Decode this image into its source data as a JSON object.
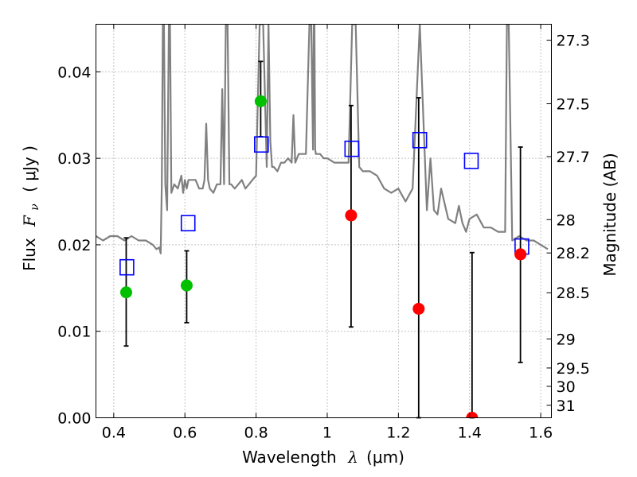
{
  "chart_data": {
    "type": "scatter",
    "xlabel": "Wavelength",
    "xlabel_symbol": "λ",
    "xlabel_unit": "(μm)",
    "ylabel": "Flux",
    "ylabel_symbol": "F",
    "ylabel_subscript": "ν",
    "ylabel_unit": "( μJy )",
    "ylabel_right": "Magnitude (AB)",
    "xlim": [
      0.35,
      1.63
    ],
    "ylim": [
      0.0,
      0.0455
    ],
    "grid": true,
    "x_ticks": [
      {
        "value": 0.4,
        "label": "0.4"
      },
      {
        "value": 0.6,
        "label": "0.6"
      },
      {
        "value": 0.8,
        "label": "0.8"
      },
      {
        "value": 1.0,
        "label": "1"
      },
      {
        "value": 1.2,
        "label": "1.2"
      },
      {
        "value": 1.4,
        "label": "1.4"
      },
      {
        "value": 1.6,
        "label": "1.6"
      }
    ],
    "y_ticks": [
      {
        "value": 0.0,
        "label": "0.00"
      },
      {
        "value": 0.01,
        "label": "0.01"
      },
      {
        "value": 0.02,
        "label": "0.02"
      },
      {
        "value": 0.03,
        "label": "0.03"
      },
      {
        "value": 0.04,
        "label": "0.04"
      }
    ],
    "right_ticks": [
      {
        "mag": 27.3,
        "label": "27.3"
      },
      {
        "mag": 27.5,
        "label": "27.5"
      },
      {
        "mag": 27.7,
        "label": "27.7"
      },
      {
        "mag": 28.0,
        "label": "28"
      },
      {
        "mag": 28.2,
        "label": "28.2"
      },
      {
        "mag": 28.5,
        "label": "28.5"
      },
      {
        "mag": 29.0,
        "label": "29"
      },
      {
        "mag": 29.5,
        "label": "29.5"
      },
      {
        "mag": 30.0,
        "label": "30"
      },
      {
        "mag": 31.0,
        "label": "31"
      }
    ],
    "colors": {
      "sed": "#808080",
      "green": "#00c000",
      "red": "#ff0000",
      "blue": "#0000ff",
      "errorbar": "#000000",
      "grid": "#888888"
    },
    "series": [
      {
        "name": "model SED",
        "kind": "line",
        "x": [
          0.35,
          0.37,
          0.39,
          0.41,
          0.43,
          0.45,
          0.47,
          0.49,
          0.51,
          0.52,
          0.528,
          0.532,
          0.535,
          0.538,
          0.541,
          0.545,
          0.55,
          0.555,
          0.558,
          0.562,
          0.57,
          0.58,
          0.59,
          0.595,
          0.6,
          0.605,
          0.61,
          0.62,
          0.63,
          0.64,
          0.65,
          0.655,
          0.66,
          0.665,
          0.67,
          0.68,
          0.69,
          0.7,
          0.705,
          0.71,
          0.715,
          0.72,
          0.725,
          0.73,
          0.74,
          0.75,
          0.76,
          0.77,
          0.78,
          0.79,
          0.8,
          0.81,
          0.82,
          0.83,
          0.835,
          0.84,
          0.845,
          0.85,
          0.86,
          0.87,
          0.88,
          0.89,
          0.9,
          0.905,
          0.91,
          0.915,
          0.92,
          0.93,
          0.94,
          0.95,
          0.955,
          0.96,
          0.962,
          0.964,
          0.966,
          0.968,
          0.972,
          0.98,
          0.99,
          1.0,
          1.02,
          1.04,
          1.06,
          1.07,
          1.08,
          1.09,
          1.1,
          1.12,
          1.14,
          1.16,
          1.18,
          1.2,
          1.22,
          1.24,
          1.26,
          1.28,
          1.29,
          1.3,
          1.31,
          1.32,
          1.34,
          1.36,
          1.37,
          1.38,
          1.39,
          1.4,
          1.42,
          1.44,
          1.46,
          1.48,
          1.5,
          1.505,
          1.51,
          1.52,
          1.54,
          1.56,
          1.58,
          1.6,
          1.62
        ],
        "y": [
          0.021,
          0.0205,
          0.021,
          0.021,
          0.0205,
          0.021,
          0.0205,
          0.0205,
          0.02,
          0.0195,
          0.0197,
          0.019,
          0.027,
          0.0455,
          0.0455,
          0.027,
          0.024,
          0.0455,
          0.0455,
          0.026,
          0.027,
          0.0265,
          0.028,
          0.026,
          0.0275,
          0.0265,
          0.0275,
          0.0275,
          0.0275,
          0.0265,
          0.0265,
          0.0275,
          0.034,
          0.0275,
          0.0265,
          0.026,
          0.027,
          0.027,
          0.038,
          0.027,
          0.0455,
          0.0455,
          0.027,
          0.027,
          0.0265,
          0.027,
          0.0275,
          0.0265,
          0.027,
          0.0275,
          0.028,
          0.0455,
          0.0455,
          0.029,
          0.0455,
          0.032,
          0.029,
          0.029,
          0.0285,
          0.0295,
          0.0295,
          0.03,
          0.0295,
          0.035,
          0.0295,
          0.03,
          0.0305,
          0.0305,
          0.0305,
          0.0455,
          0.0455,
          0.031,
          0.0455,
          0.0455,
          0.031,
          0.0305,
          0.0305,
          0.0305,
          0.03,
          0.03,
          0.0295,
          0.0295,
          0.0295,
          0.0455,
          0.0455,
          0.029,
          0.0285,
          0.0285,
          0.028,
          0.0265,
          0.026,
          0.0265,
          0.025,
          0.0265,
          0.0455,
          0.024,
          0.03,
          0.024,
          0.0235,
          0.0265,
          0.023,
          0.0225,
          0.0245,
          0.0225,
          0.0215,
          0.023,
          0.0235,
          0.022,
          0.022,
          0.0215,
          0.0215,
          0.0455,
          0.0455,
          0.0205,
          0.021,
          0.0205,
          0.0205,
          0.02,
          0.0195
        ]
      },
      {
        "name": "green detections",
        "kind": "points",
        "x": [
          0.435,
          0.605,
          0.813
        ],
        "y": [
          0.0145,
          0.0153,
          0.0366
        ],
        "err_low": [
          0.0083,
          0.011,
          0.0325
        ],
        "err_high": [
          0.0208,
          0.0193,
          0.0412
        ]
      },
      {
        "name": "red measurements",
        "kind": "points",
        "x": [
          1.067,
          1.257,
          1.407,
          1.543
        ],
        "y": [
          0.0234,
          0.0126,
          0.0,
          0.0189
        ],
        "err_low": [
          0.0105,
          0.0,
          0.0,
          0.0064
        ],
        "err_high": [
          0.0361,
          0.037,
          0.0191,
          0.0313
        ]
      },
      {
        "name": "model photometry",
        "kind": "squares",
        "x": [
          0.437,
          0.609,
          0.815,
          1.069,
          1.26,
          1.405,
          1.547
        ],
        "y": [
          0.0174,
          0.0225,
          0.0316,
          0.0311,
          0.0321,
          0.0297,
          0.0198
        ]
      }
    ]
  }
}
